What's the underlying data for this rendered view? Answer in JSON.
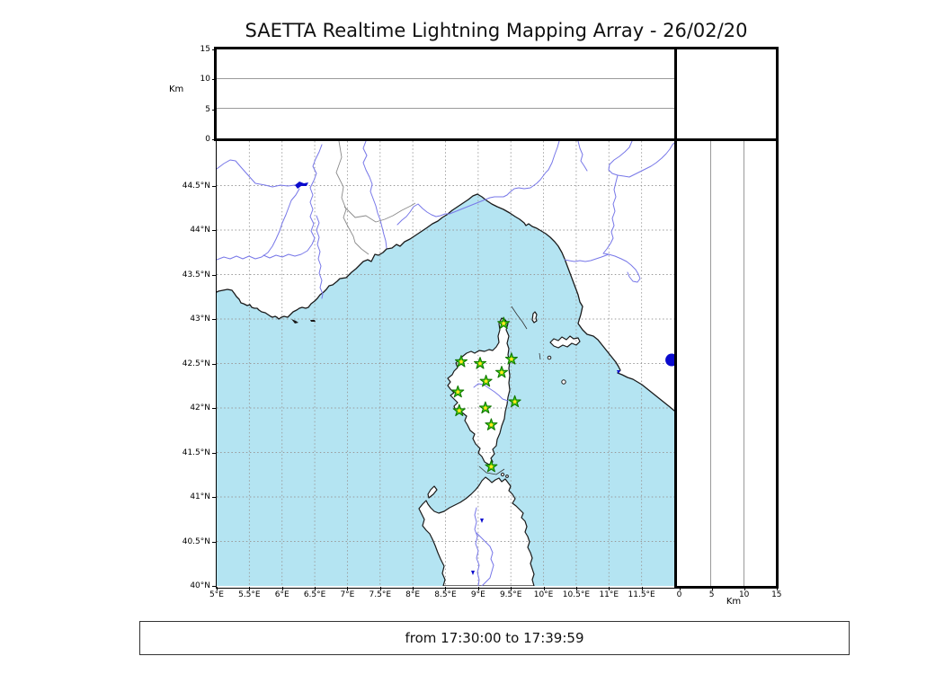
{
  "title": "SAETTA Realtime Lightning Mapping Array - 26/02/20",
  "footer": {
    "time_range": "from 17:30:00 to 17:39:59"
  },
  "altitude_axis": {
    "unit": "Km",
    "ticks": [
      0,
      5,
      10,
      15
    ]
  },
  "distance_axis": {
    "unit": "Km",
    "ticks": [
      0,
      5,
      10,
      15
    ]
  },
  "map": {
    "lat_tick_labels": [
      "44.5°N",
      "44°N",
      "43.5°N",
      "43°N",
      "42.5°N",
      "42°N",
      "41.5°N",
      "41°N",
      "40.5°N",
      "40°N"
    ],
    "lon_tick_labels": [
      "5°E",
      "5.5°E",
      "6°E",
      "6.5°E",
      "7°E",
      "7.5°E",
      "8°E",
      "8.5°E",
      "9°E",
      "9.5°E",
      "10°E",
      "10.5°E",
      "11°E",
      "11.5°E"
    ],
    "lon_range": [
      5,
      12
    ],
    "lat_range": [
      40,
      45
    ],
    "stations": [
      [
        9.39,
        42.95
      ],
      [
        8.74,
        42.52
      ],
      [
        9.03,
        42.5
      ],
      [
        9.51,
        42.55
      ],
      [
        9.36,
        42.4
      ],
      [
        9.12,
        42.3
      ],
      [
        8.69,
        42.18
      ],
      [
        9.56,
        42.07
      ],
      [
        9.11,
        42.0
      ],
      [
        8.71,
        41.97
      ],
      [
        9.2,
        41.81
      ],
      [
        9.2,
        41.34
      ]
    ],
    "blue_marker": [
      11.96,
      42.54
    ]
  },
  "colors": {
    "sea": "#b4e4f2",
    "river": "#7777e8",
    "station_green": "#44d911",
    "station_core": "#ffee22",
    "marker_navy": "#0a0acd"
  }
}
